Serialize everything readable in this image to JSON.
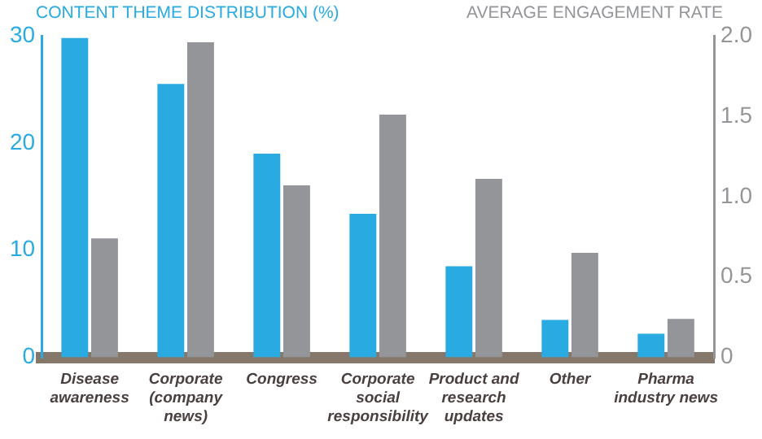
{
  "chart_data": {
    "type": "bar",
    "ylabel": "CONTENT THEME DISTRIBUTION (%)",
    "y2label": "AVERAGE ENGAGEMENT RATE",
    "categories": [
      "Disease awareness",
      "Corporate (company news)",
      "Congress",
      "Corporate social responsibility",
      "Product and research updates",
      "Other",
      "Pharma industry news"
    ],
    "series": [
      {
        "color": "#29abe2",
        "values": [
          29.8,
          25.5,
          19.0,
          13.4,
          8.5,
          3.5,
          2.2
        ]
      },
      {
        "color": "#939598",
        "axis": "y2",
        "values": [
          0.74,
          1.96,
          1.07,
          1.51,
          1.11,
          0.65,
          0.24
        ]
      }
    ],
    "ylim": [
      0,
      30
    ],
    "yticks": [
      0,
      10,
      20,
      30
    ],
    "y2lim": [
      0,
      2
    ],
    "y2ticks": [
      0,
      0.5,
      {
        "value": 1,
        "label": "1.0"
      },
      1.5,
      {
        "value": 2,
        "label": "2.0"
      }
    ],
    "grid": false,
    "legend": false
  }
}
